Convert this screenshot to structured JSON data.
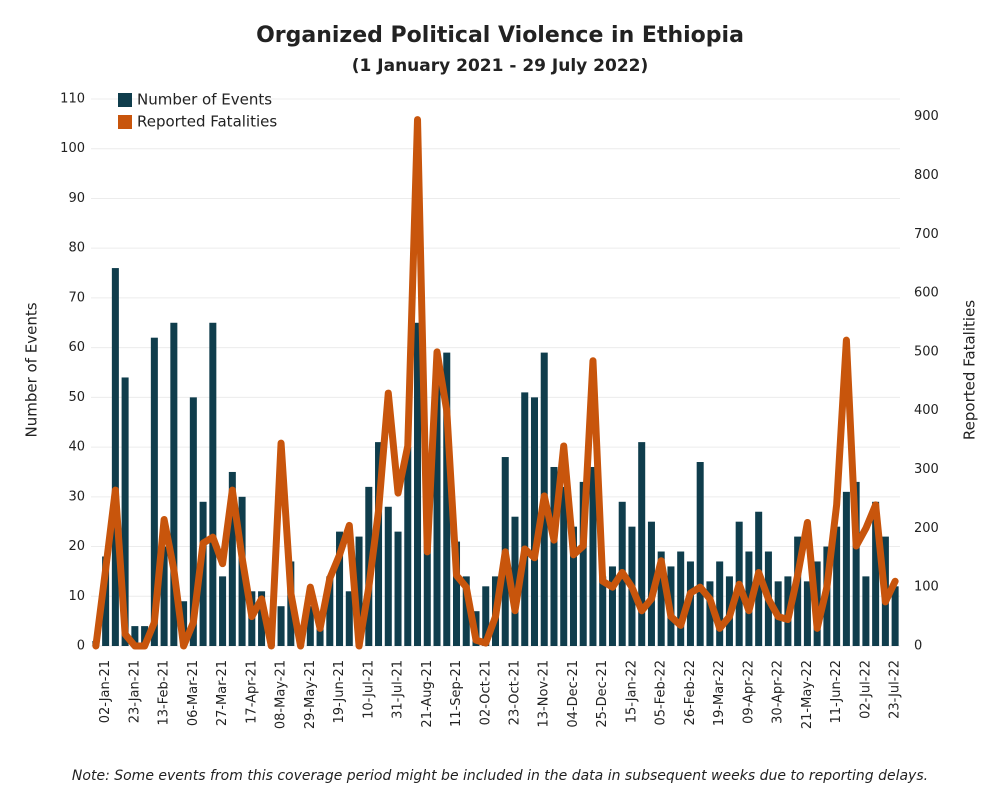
{
  "chart_data": {
    "type": "bar_line",
    "title": "Organized Political Violence in Ethiopia",
    "subtitle": "(1 January 2021 - 29 July 2022)",
    "note": "Note: Some events from this coverage period might be included in the data in subsequent weeks due to reporting delays.",
    "y_label": "Number of Events",
    "y2_label": "Reported Fatalities",
    "categories": [
      null,
      "02-Jan-21",
      null,
      null,
      "23-Jan-21",
      null,
      null,
      "13-Feb-21",
      null,
      null,
      "06-Mar-21",
      null,
      null,
      "27-Mar-21",
      null,
      null,
      "17-Apr-21",
      null,
      null,
      "08-May-21",
      null,
      null,
      "29-May-21",
      null,
      null,
      "19-Jun-21",
      null,
      null,
      "10-Jul-21",
      null,
      null,
      "31-Jul-21",
      null,
      null,
      "21-Aug-21",
      null,
      null,
      "11-Sep-21",
      null,
      null,
      "02-Oct-21",
      null,
      null,
      "23-Oct-21",
      null,
      null,
      "13-Nov-21",
      null,
      null,
      "04-Dec-21",
      null,
      null,
      "25-Dec-21",
      null,
      null,
      "15-Jan-22",
      null,
      null,
      "05-Feb-22",
      null,
      null,
      "26-Feb-22",
      null,
      null,
      "19-Mar-22",
      null,
      null,
      "09-Apr-22",
      null,
      null,
      "30-Apr-22",
      null,
      null,
      "21-May-22",
      null,
      null,
      "11-Jun-22",
      null,
      null,
      "02-Jul-22",
      null,
      null,
      "23-Jul-22"
    ],
    "series": [
      {
        "name": "Number of Events",
        "color": "#0f3d4c",
        "type": "bar",
        "axis": "y",
        "values": [
          1,
          18,
          76,
          54,
          4,
          4,
          62,
          20,
          65,
          9,
          50,
          29,
          65,
          14,
          35,
          30,
          11,
          11,
          5,
          8,
          17,
          2,
          8,
          4,
          14,
          23,
          11,
          22,
          32,
          41,
          28,
          23,
          40,
          65,
          21,
          57,
          59,
          21,
          14,
          7,
          12,
          14,
          38,
          26,
          51,
          50,
          59,
          36,
          32,
          24,
          33,
          36,
          14,
          16,
          29,
          24,
          41,
          25,
          19,
          16,
          19,
          17,
          37,
          13,
          17,
          14,
          25,
          19,
          27,
          19,
          13,
          14,
          22,
          13,
          17,
          20,
          24,
          31,
          33,
          14,
          29,
          22,
          12
        ]
      },
      {
        "name": "Reported Fatalities",
        "color": "#c8550c",
        "type": "line",
        "axis": "y2",
        "values": [
          0,
          130,
          265,
          20,
          0,
          0,
          40,
          215,
          130,
          0,
          40,
          175,
          185,
          140,
          265,
          150,
          50,
          80,
          0,
          345,
          90,
          0,
          100,
          30,
          115,
          155,
          205,
          0,
          100,
          230,
          430,
          260,
          340,
          895,
          160,
          500,
          400,
          120,
          100,
          10,
          5,
          50,
          160,
          60,
          165,
          150,
          255,
          180,
          340,
          155,
          170,
          485,
          110,
          100,
          125,
          100,
          60,
          80,
          145,
          50,
          35,
          90,
          100,
          80,
          30,
          50,
          105,
          60,
          125,
          80,
          50,
          45,
          120,
          210,
          30,
          100,
          240,
          520,
          170,
          200,
          240,
          75,
          110
        ]
      }
    ],
    "ylim": [
      0,
      110
    ],
    "yticks": [
      0,
      10,
      20,
      30,
      40,
      50,
      60,
      70,
      80,
      90,
      100,
      110
    ],
    "y2lim": [
      0,
      930
    ],
    "y2ticks": [
      0,
      100,
      200,
      300,
      400,
      500,
      600,
      700,
      800,
      900
    ],
    "grid": true,
    "legend": "top-left"
  }
}
